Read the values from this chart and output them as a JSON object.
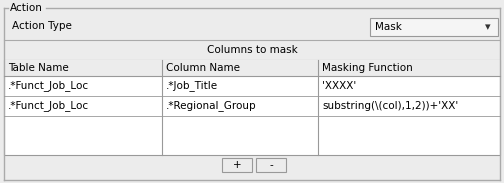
{
  "title": "Action",
  "background_color": "#ececec",
  "action_type_label": "Action Type",
  "action_type_value": "Mask",
  "columns_to_mask_label": "Columns to mask",
  "table_headers": [
    "Table Name",
    "Column Name",
    "Masking Function"
  ],
  "rows": [
    [
      ".*Funct_Job_Loc",
      ".*Job_Title",
      "'XXXX'"
    ],
    [
      ".*Funct_Job_Loc",
      ".*Regional_Group",
      "substring(\\(col),1,2))+'XX'"
    ]
  ],
  "button_plus": "+",
  "button_minus": "-",
  "border_color": "#999999",
  "groupbox_line_color": "#aaaaaa",
  "text_color": "#000000",
  "font_size": 7.5,
  "dropdown_bg": "#f5f5f5"
}
